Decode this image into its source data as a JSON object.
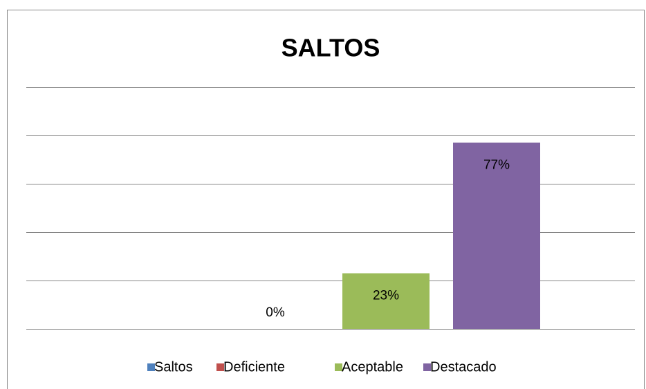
{
  "chart_data": {
    "type": "bar",
    "title": "SALTOS",
    "categories": [
      null
    ],
    "series": [
      {
        "name": "Saltos",
        "color": "#4f81bd",
        "values": [
          null
        ]
      },
      {
        "name": "Deficiente",
        "color": "#c0504d",
        "values": [
          0
        ],
        "value_labels": [
          "0%"
        ]
      },
      {
        "name": "Aceptable",
        "color": "#9bbb59",
        "values": [
          23
        ],
        "value_labels": [
          "23%"
        ]
      },
      {
        "name": "Destacado",
        "color": "#8064a2",
        "values": [
          77
        ],
        "value_labels": [
          "77%"
        ]
      }
    ],
    "ylim": [
      0,
      100
    ],
    "yticks": [
      0,
      20,
      40,
      60,
      80,
      100
    ],
    "grid": true,
    "legend": "bottom"
  }
}
